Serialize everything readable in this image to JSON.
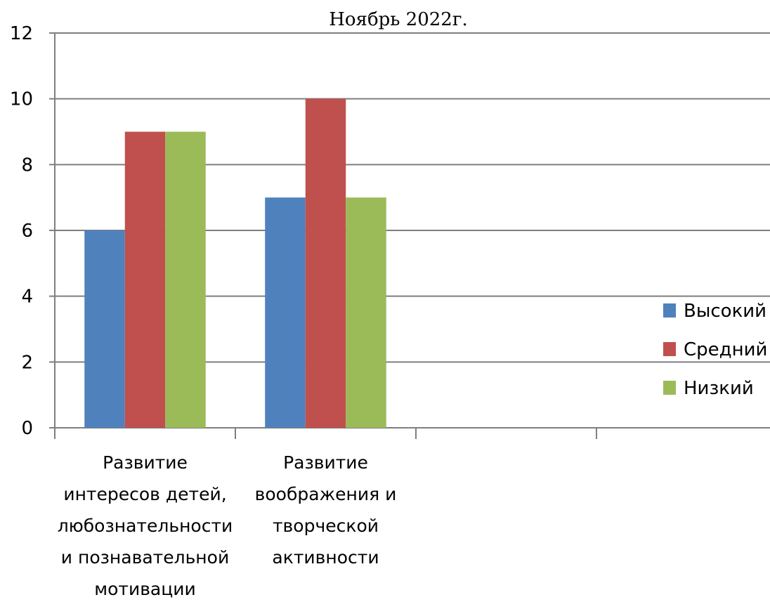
{
  "chart_data": {
    "type": "bar",
    "title": "Ноябрь 2022г.",
    "xlabel": "",
    "ylabel": "",
    "ylim": [
      0,
      12
    ],
    "yticks": [
      0,
      2,
      4,
      6,
      8,
      10,
      12
    ],
    "grid": true,
    "legend_position": "right",
    "categories": [
      [
        "Развитие",
        "интересов детей,",
        "любознательности",
        "и познавательной",
        "мотивации"
      ],
      [
        "Развитие",
        "воображения и",
        "творческой",
        "активности"
      ],
      [
        ""
      ],
      [
        ""
      ]
    ],
    "series": [
      {
        "name": "Высокий",
        "color": "#4F81BD",
        "values": [
          6,
          7,
          null,
          null
        ]
      },
      {
        "name": "Средний",
        "color": "#C0504D",
        "values": [
          9,
          10,
          null,
          null
        ]
      },
      {
        "name": "Низкий",
        "color": "#9BBB59",
        "values": [
          9,
          7,
          null,
          null
        ]
      }
    ]
  }
}
